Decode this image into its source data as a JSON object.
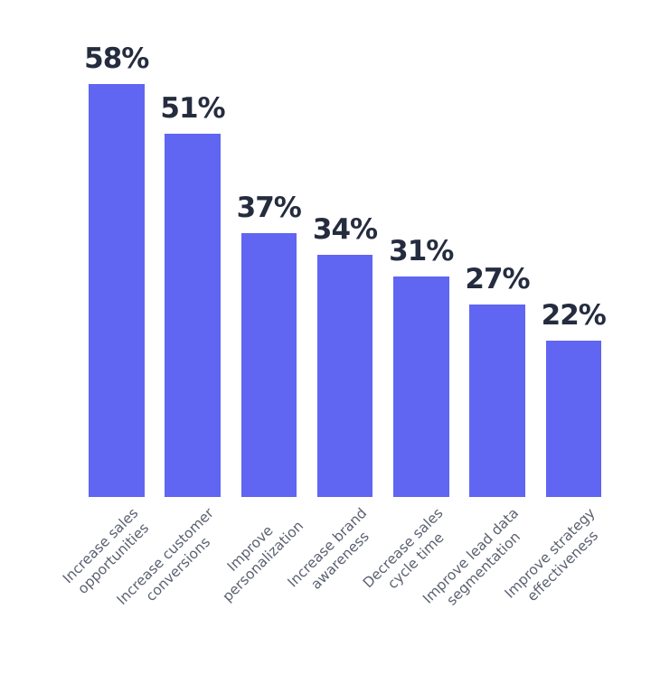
{
  "chart_data": {
    "type": "bar",
    "title": "",
    "xlabel": "",
    "ylabel": "",
    "categories": [
      "Increase sales opportunities",
      "Increase customer conversions",
      "Improve personalization",
      "Increase brand awareness",
      "Decrease sales cycle time",
      "Improve lead data segmentation",
      "Improve strategy effectiveness"
    ],
    "category_lines": [
      [
        "Increase sales",
        "opportunities"
      ],
      [
        "Increase customer",
        "conversions"
      ],
      [
        "Improve",
        "personalization"
      ],
      [
        "Increase brand",
        "awareness"
      ],
      [
        "Decrease sales",
        "cycle time"
      ],
      [
        "Improve lead data",
        "segmentation"
      ],
      [
        "Improve strategy",
        "effectiveness"
      ]
    ],
    "values": [
      58,
      51,
      37,
      34,
      31,
      27,
      22
    ],
    "value_labels": [
      "58%",
      "51%",
      "37%",
      "34%",
      "31%",
      "27%",
      "22%"
    ],
    "unit": "%",
    "ylim": [
      0,
      63
    ],
    "grid": false,
    "legend": false,
    "axis_lines": false,
    "colors": {
      "bar": "#6065F2",
      "value_label": "#252C3F",
      "category_label": "#5B6170",
      "background": "#FFFFFF"
    }
  }
}
